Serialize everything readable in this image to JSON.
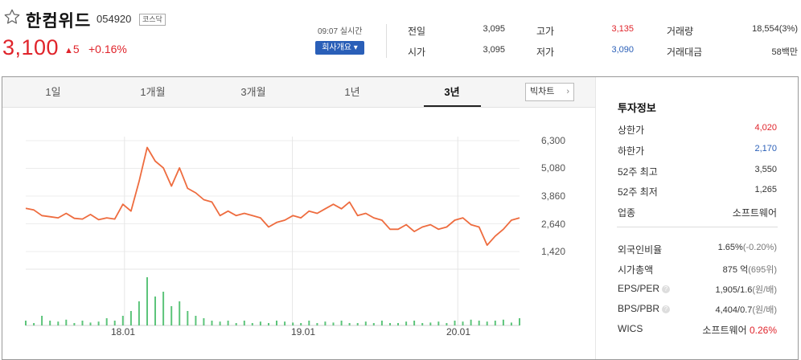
{
  "stock": {
    "name": "한컴위드",
    "code": "054920",
    "market": "코스닥",
    "price": "3,100",
    "change": "5",
    "change_pct": "+0.16%",
    "realtime": "09:07 실시간",
    "company_btn": "회사개요 ▾"
  },
  "summary": {
    "prev_label": "전일",
    "prev": "3,095",
    "open_label": "시가",
    "open": "3,095",
    "high_label": "고가",
    "high": "3,135",
    "low_label": "저가",
    "low": "3,090",
    "volume_label": "거래량",
    "volume": "18,554(3%)",
    "amount_label": "거래대금",
    "amount": "58백만"
  },
  "tabs": [
    "1일",
    "1개월",
    "3개월",
    "1년",
    "3년"
  ],
  "selected_tab": "3년",
  "candle_btn": "빅차트",
  "chart_data": {
    "type": "line",
    "period": "3년",
    "ylim": [
      1420,
      6300
    ],
    "yticks": [
      "6,300",
      "5,080",
      "3,860",
      "2,640",
      "1,420"
    ],
    "xticks": [
      "18.01",
      "19.01",
      "20.01"
    ],
    "series": [
      {
        "values": [
          3320,
          3250,
          3000,
          2950,
          2900,
          3100,
          2880,
          2850,
          3050,
          2820,
          2900,
          2850,
          3500,
          3200,
          4500,
          6000,
          5400,
          5100,
          4300,
          5100,
          4200,
          4000,
          3700,
          3600,
          3000,
          3200,
          3000,
          3100,
          3000,
          2900,
          2500,
          2700,
          2800,
          3000,
          2900,
          3200,
          3100,
          3300,
          3500,
          3300,
          3600,
          3000,
          3100,
          2900,
          2800,
          2400,
          2400,
          2600,
          2300,
          2500,
          2600,
          2400,
          2500,
          2800,
          2900,
          2600,
          2500,
          1700,
          2100,
          2400,
          2800,
          2900
        ]
      }
    ],
    "volume": [
      0.1,
      0.05,
      0.2,
      0.1,
      0.08,
      0.12,
      0.05,
      0.1,
      0.06,
      0.08,
      0.15,
      0.1,
      0.2,
      0.3,
      0.5,
      1.0,
      0.6,
      0.7,
      0.4,
      0.5,
      0.3,
      0.2,
      0.15,
      0.1,
      0.08,
      0.1,
      0.05,
      0.1,
      0.05,
      0.08,
      0.05,
      0.1,
      0.08,
      0.06,
      0.05,
      0.1,
      0.05,
      0.08,
      0.06,
      0.1,
      0.05,
      0.05,
      0.08,
      0.05,
      0.1,
      0.05,
      0.05,
      0.08,
      0.1,
      0.05,
      0.06,
      0.08,
      0.05,
      0.1,
      0.08,
      0.12,
      0.1,
      0.08,
      0.1,
      0.12,
      0.06,
      0.15
    ]
  },
  "invest": {
    "title": "투자정보",
    "rows": [
      {
        "label": "상한가",
        "value": "4,020",
        "color": "#e0242b"
      },
      {
        "label": "하한가",
        "value": "2,170",
        "color": "#2a5fb8"
      },
      {
        "label": "52주 최고",
        "value": "3,550"
      },
      {
        "label": "52주 최저",
        "value": "1,265"
      },
      {
        "label": "업종",
        "value": "소프트웨어"
      }
    ],
    "foreign_label": "외국인비율",
    "foreign_value": "1.65%",
    "foreign_sub": "(-0.20%)",
    "mcap_label": "시가총액",
    "mcap_value": "875",
    "mcap_unit": "억",
    "mcap_sub": "(695위)",
    "eps_label": "EPS/PER",
    "eps_value": "1,905/1.6",
    "eps_sub": "(원/배)",
    "bps_label": "BPS/PBR",
    "bps_value": "4,404/0.7",
    "bps_sub": "(원/배)",
    "wics_label": "WICS",
    "wics_value": "소프트웨어",
    "wics_pct": "0.26%"
  }
}
